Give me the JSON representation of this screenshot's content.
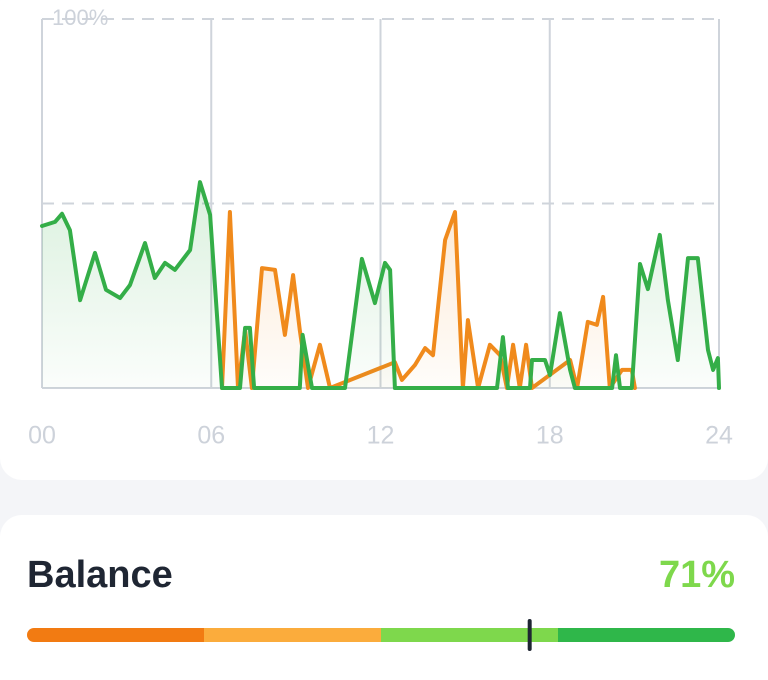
{
  "chart_data": {
    "type": "line",
    "xlim": [
      0,
      24
    ],
    "xticks": [
      {
        "value": 0,
        "label": "00"
      },
      {
        "value": 6,
        "label": "06"
      },
      {
        "value": 12,
        "label": "12"
      },
      {
        "value": 18,
        "label": "18"
      },
      {
        "value": 24,
        "label": "24"
      }
    ],
    "ylim": [
      0,
      100
    ],
    "yticks": [
      {
        "value": 100,
        "label": "100%"
      }
    ],
    "ygrid": [
      50,
      100
    ],
    "series": [
      {
        "color": "#f08a1c",
        "x": [
          6.38,
          6.66,
          6.95,
          7.2,
          7.44,
          7.8,
          8.26,
          8.61,
          8.9,
          9.14,
          9.43,
          9.85,
          10.21,
          12.51,
          12.76,
          13.22,
          13.58,
          13.86,
          14.29,
          14.64,
          14.92,
          15.1,
          15.46,
          15.88,
          16.24,
          16.48,
          16.7,
          16.94,
          17.16,
          17.37,
          18.72,
          18.97,
          19.35,
          19.67,
          19.89,
          20.13,
          20.56,
          20.91,
          21.02
        ],
        "values": [
          0,
          47.7,
          0,
          15.7,
          0,
          32.5,
          32.0,
          14.4,
          30.6,
          15.7,
          0,
          11.7,
          0,
          7.0,
          2.2,
          6.2,
          10.8,
          8.9,
          40.1,
          47.7,
          0,
          18.4,
          0,
          11.7,
          8.9,
          0,
          11.7,
          0,
          11.7,
          0,
          7.6,
          0,
          17.9,
          17.1,
          24.7,
          0,
          4.9,
          4.9,
          0
        ]
      },
      {
        "color": "#34ae48",
        "x": [
          0,
          0.46,
          0.71,
          0.99,
          1.35,
          1.88,
          2.27,
          2.77,
          3.12,
          3.65,
          4.0,
          4.36,
          4.71,
          5.25,
          5.6,
          5.96,
          6.24,
          6.38,
          7.02,
          7.2,
          7.37,
          7.52,
          9.14,
          9.24,
          9.57,
          10.74,
          11.34,
          11.8,
          12.16,
          12.34,
          12.51,
          16.13,
          16.34,
          16.52,
          17.3,
          17.37,
          17.83,
          18.01,
          18.36,
          18.72,
          18.89,
          20.21,
          20.35,
          20.49,
          20.91,
          21.2,
          21.48,
          21.9,
          22.19,
          22.54,
          22.9,
          23.25,
          23.61,
          23.79,
          23.96,
          24
        ],
        "values": [
          43.9,
          45.0,
          47.2,
          42.8,
          23.8,
          36.6,
          26.6,
          24.4,
          27.9,
          39.3,
          29.8,
          33.9,
          32.0,
          37.4,
          55.8,
          46.9,
          15.7,
          0,
          0,
          16.3,
          16.3,
          0,
          0,
          14.4,
          0,
          0,
          35.0,
          23.0,
          33.9,
          32.0,
          0,
          0,
          13.8,
          0,
          0,
          7.6,
          7.6,
          3.5,
          20.3,
          4.9,
          0,
          0,
          8.9,
          0,
          0,
          33.6,
          26.8,
          41.5,
          23.8,
          7.6,
          35.2,
          35.2,
          10.3,
          4.9,
          8.1,
          0
        ]
      }
    ]
  },
  "balance": {
    "label": "Balance",
    "value": 71,
    "value_label": "71%",
    "segment_colors": [
      "#f27b12",
      "#fbac3c",
      "#7ed84c",
      "#2fb74a"
    ]
  }
}
